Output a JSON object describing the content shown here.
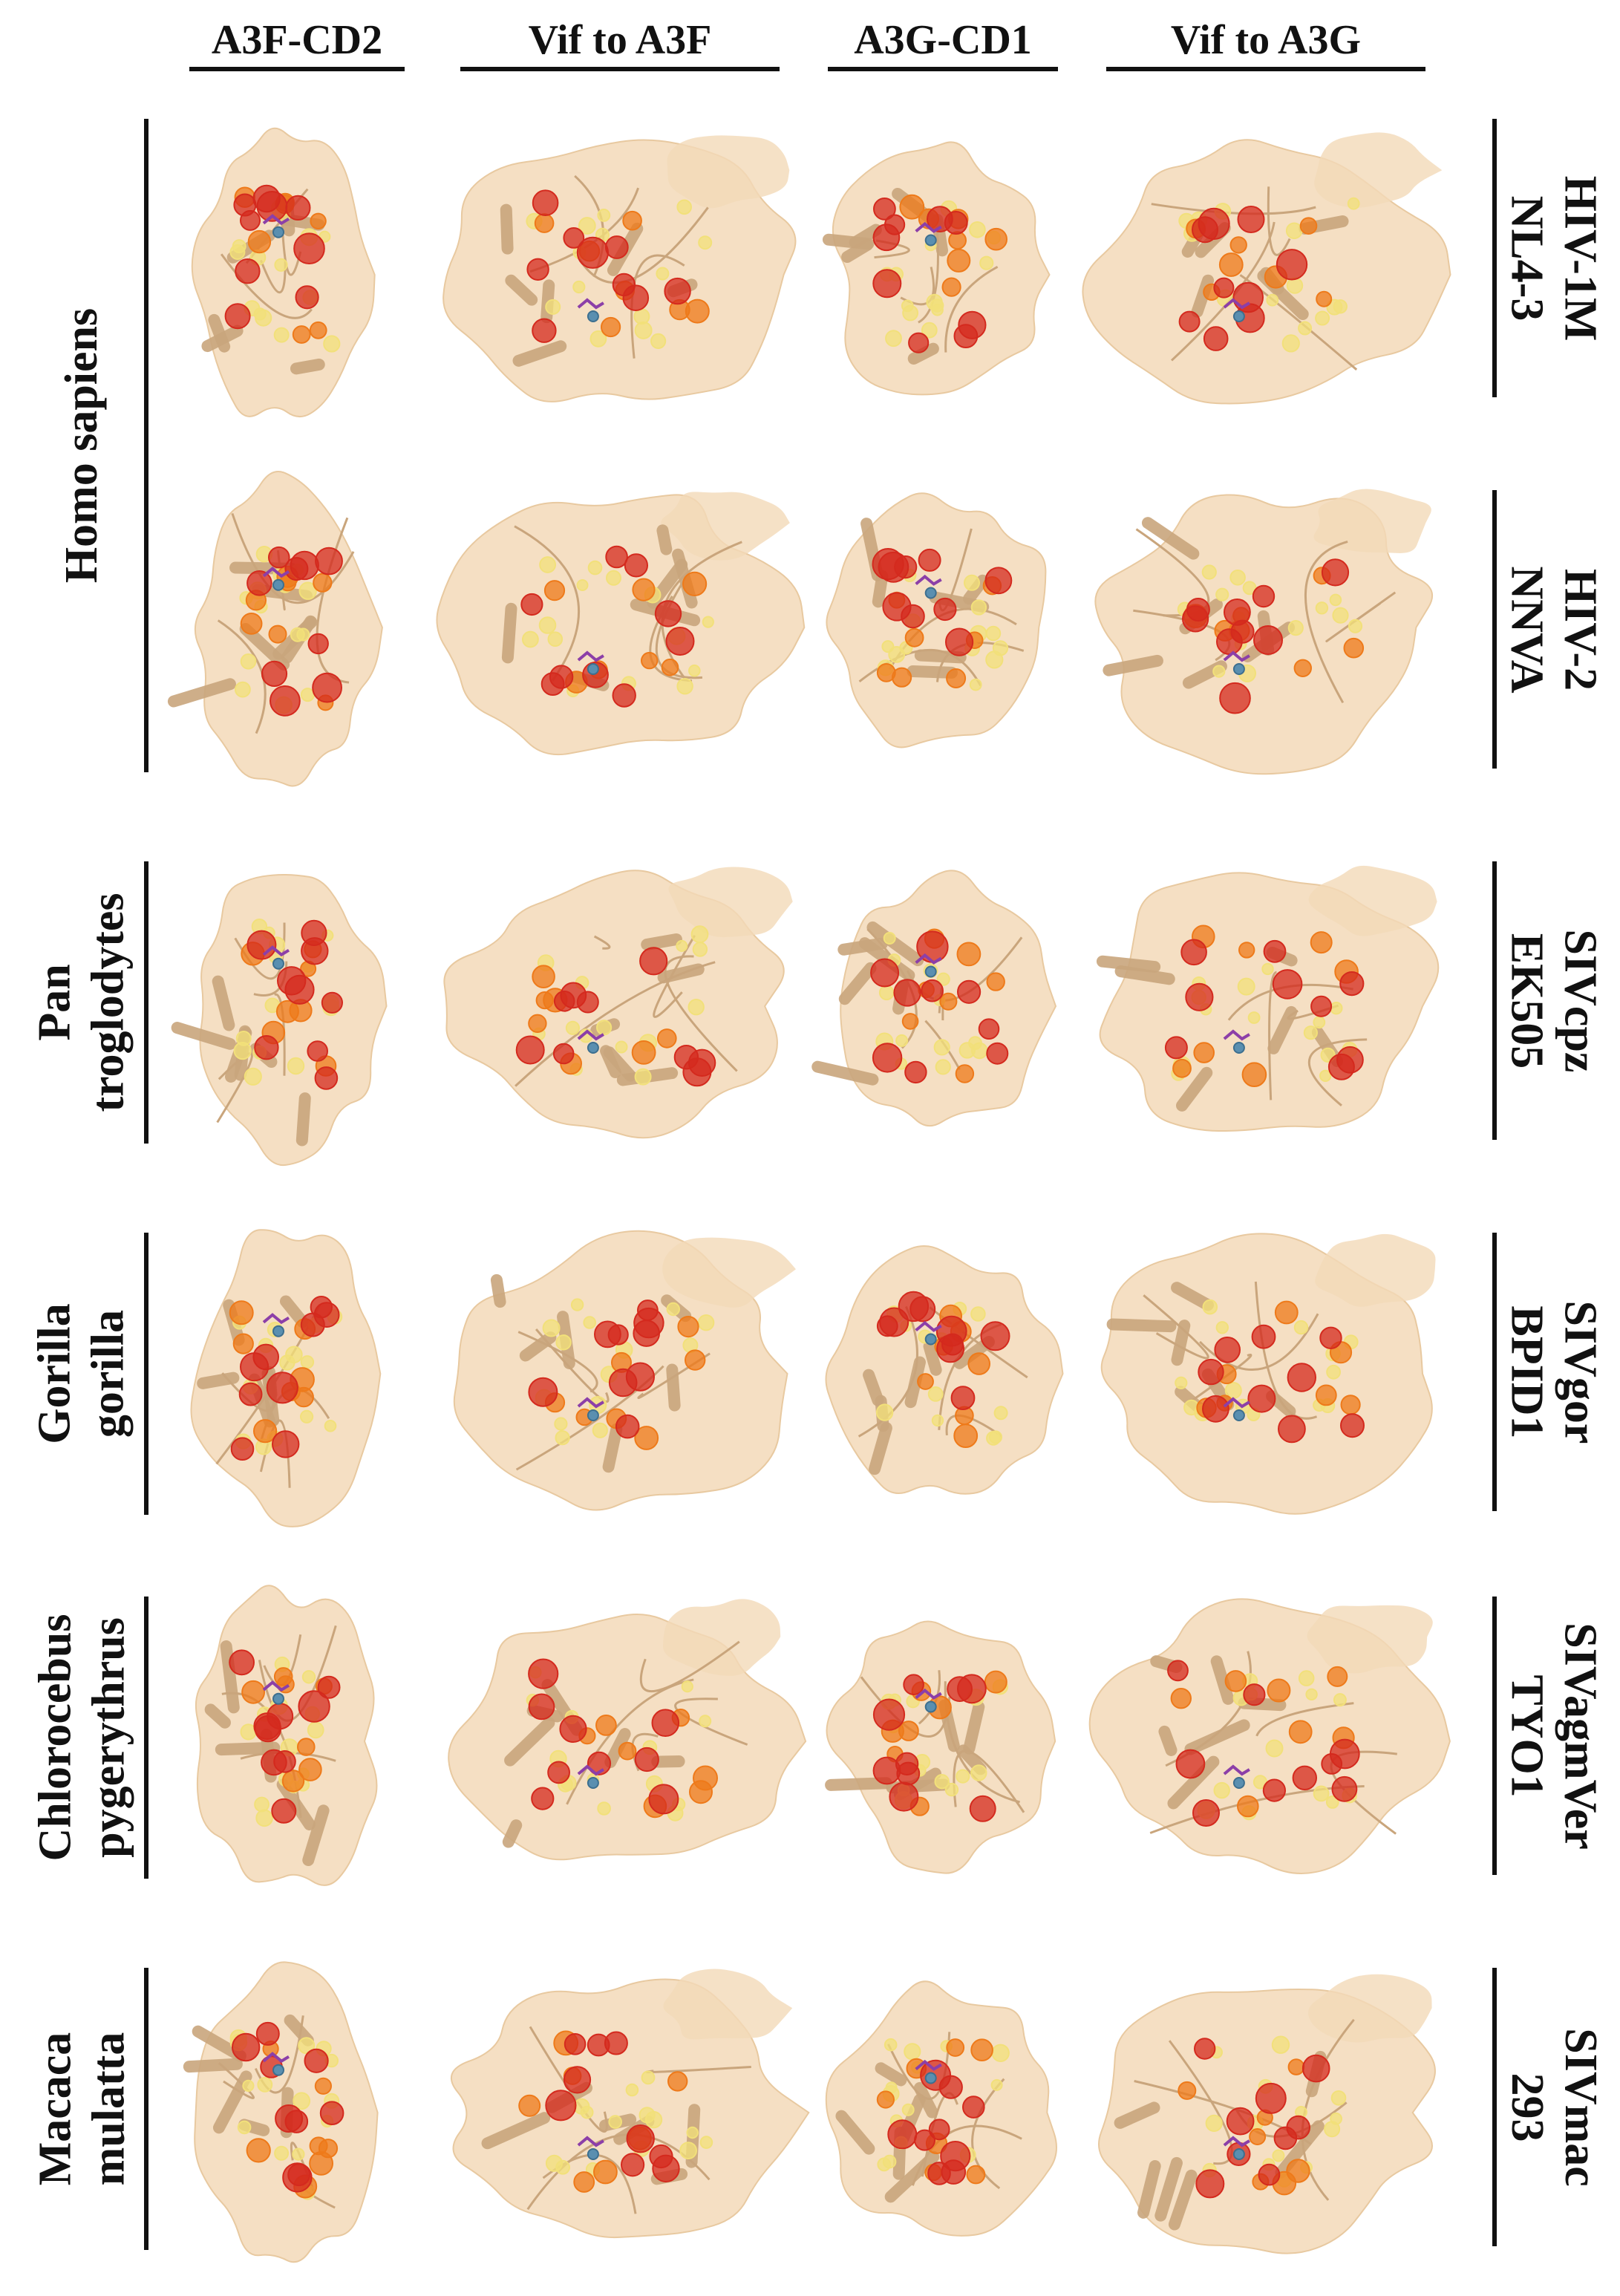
{
  "columns": [
    "A3F-CD2",
    "Vif to A3F",
    "A3G-CD1",
    "Vif to A3G"
  ],
  "species": [
    {
      "lines": [
        "Homo sapiens"
      ]
    },
    {
      "lines": [
        "Pan",
        "troglodytes"
      ]
    },
    {
      "lines": [
        "Gorilla",
        "gorilla"
      ]
    },
    {
      "lines": [
        "Chlorocebus",
        "pygerythrus"
      ]
    },
    {
      "lines": [
        "Macaca",
        "mulatta"
      ]
    }
  ],
  "viruses": [
    {
      "lines": [
        "HIV-1M",
        "NL4-3"
      ]
    },
    {
      "lines": [
        "HIV-2",
        "NNVA"
      ]
    },
    {
      "lines": [
        "SIVcpz",
        "EK505"
      ]
    },
    {
      "lines": [
        "SIVgor",
        "BPID1"
      ]
    },
    {
      "lines": [
        "SIVagmVer",
        "TYO1"
      ]
    },
    {
      "lines": [
        "SIVmac",
        "293"
      ]
    }
  ],
  "colors": {
    "surface": "#f3d9b8",
    "ribbon": "#c9a57c",
    "high": "#d42a1e",
    "mid": "#ee7a1a",
    "low": "#f2e07a",
    "ligand": "#8c3fa8",
    "zinc": "#5a8fb0"
  }
}
